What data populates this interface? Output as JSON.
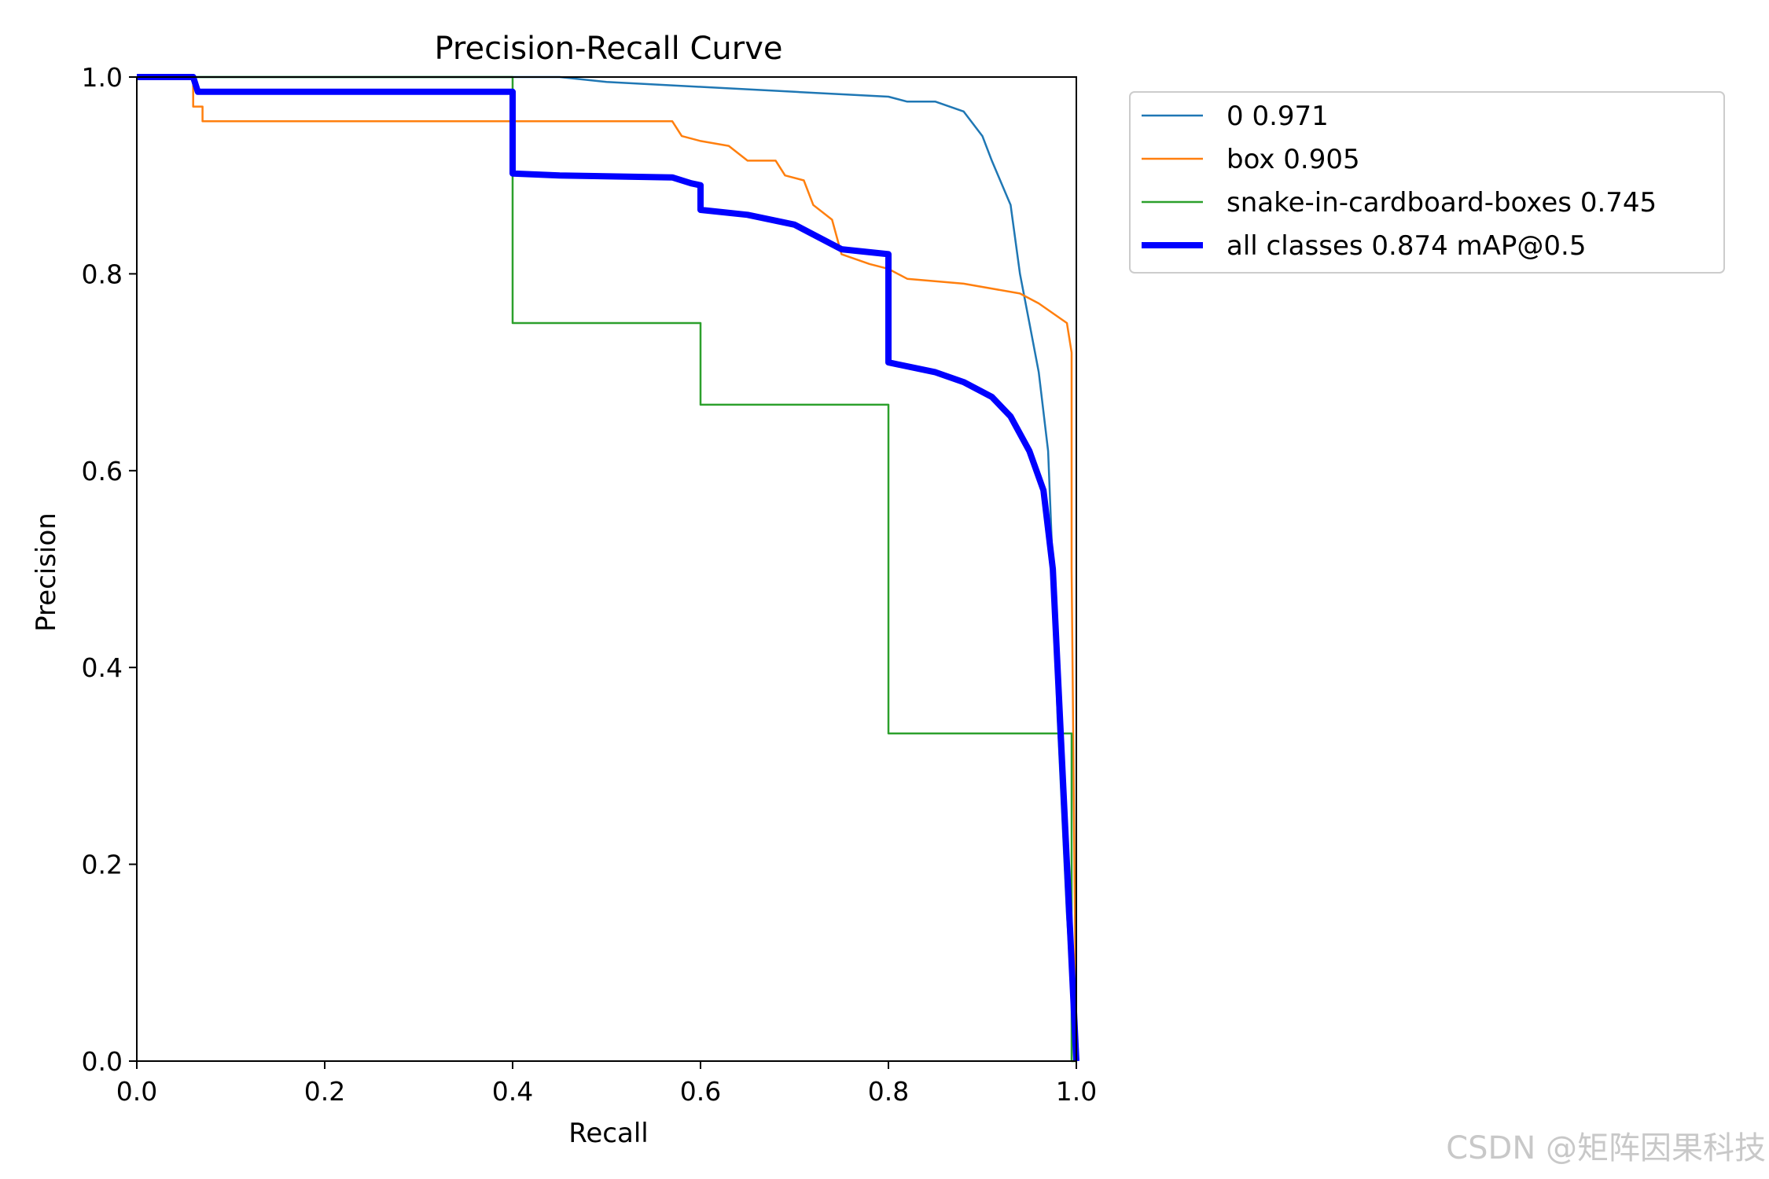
{
  "chart_data": {
    "type": "line",
    "title": "Precision-Recall Curve",
    "xlabel": "Recall",
    "ylabel": "Precision",
    "xlim": [
      0,
      1
    ],
    "ylim": [
      0,
      1
    ],
    "xticks": [
      "0.0",
      "0.2",
      "0.4",
      "0.6",
      "0.8",
      "1.0"
    ],
    "yticks": [
      "0.0",
      "0.2",
      "0.4",
      "0.6",
      "0.8",
      "1.0"
    ],
    "grid": false,
    "legend_position": "outside-top-right",
    "series": [
      {
        "name": "0 0.971",
        "color": "#1f77b4",
        "line": "thin",
        "points": [
          [
            0,
            1
          ],
          [
            0.45,
            1.0
          ],
          [
            0.5,
            0.995
          ],
          [
            0.6,
            0.99
          ],
          [
            0.7,
            0.985
          ],
          [
            0.8,
            0.98
          ],
          [
            0.82,
            0.975
          ],
          [
            0.85,
            0.975
          ],
          [
            0.88,
            0.965
          ],
          [
            0.9,
            0.94
          ],
          [
            0.91,
            0.915
          ],
          [
            0.93,
            0.87
          ],
          [
            0.94,
            0.8
          ],
          [
            0.95,
            0.75
          ],
          [
            0.96,
            0.7
          ],
          [
            0.97,
            0.62
          ],
          [
            0.975,
            0.5
          ],
          [
            0.98,
            0.35
          ],
          [
            0.99,
            0.15
          ],
          [
            1.0,
            0.0
          ]
        ]
      },
      {
        "name": "box 0.905",
        "color": "#ff7f0e",
        "line": "thin",
        "points": [
          [
            0,
            1
          ],
          [
            0.06,
            1.0
          ],
          [
            0.06,
            0.97
          ],
          [
            0.07,
            0.97
          ],
          [
            0.07,
            0.955
          ],
          [
            0.4,
            0.955
          ],
          [
            0.57,
            0.955
          ],
          [
            0.58,
            0.94
          ],
          [
            0.6,
            0.935
          ],
          [
            0.63,
            0.93
          ],
          [
            0.65,
            0.915
          ],
          [
            0.68,
            0.915
          ],
          [
            0.69,
            0.9
          ],
          [
            0.71,
            0.895
          ],
          [
            0.72,
            0.87
          ],
          [
            0.74,
            0.855
          ],
          [
            0.75,
            0.82
          ],
          [
            0.78,
            0.81
          ],
          [
            0.8,
            0.805
          ],
          [
            0.82,
            0.795
          ],
          [
            0.88,
            0.79
          ],
          [
            0.94,
            0.78
          ],
          [
            0.96,
            0.77
          ],
          [
            0.99,
            0.75
          ],
          [
            0.995,
            0.72
          ],
          [
            0.995,
            0.5
          ],
          [
            1.0,
            0.0
          ]
        ]
      },
      {
        "name": "snake-in-cardboard-boxes 0.745",
        "color": "#2ca02c",
        "line": "thin",
        "points": [
          [
            0,
            1
          ],
          [
            0.4,
            1
          ],
          [
            0.4,
            0.75
          ],
          [
            0.6,
            0.75
          ],
          [
            0.6,
            0.667
          ],
          [
            0.8,
            0.667
          ],
          [
            0.8,
            0.333
          ],
          [
            0.995,
            0.333
          ],
          [
            0.995,
            0.0
          ],
          [
            1.0,
            0.0
          ]
        ]
      },
      {
        "name": "all classes 0.874 mAP@0.5",
        "color": "#0000ff",
        "line": "thick",
        "points": [
          [
            0,
            1
          ],
          [
            0.06,
            1.0
          ],
          [
            0.065,
            0.985
          ],
          [
            0.4,
            0.985
          ],
          [
            0.4,
            0.902
          ],
          [
            0.45,
            0.9
          ],
          [
            0.57,
            0.898
          ],
          [
            0.59,
            0.892
          ],
          [
            0.6,
            0.89
          ],
          [
            0.6,
            0.865
          ],
          [
            0.65,
            0.86
          ],
          [
            0.7,
            0.85
          ],
          [
            0.72,
            0.84
          ],
          [
            0.74,
            0.83
          ],
          [
            0.75,
            0.825
          ],
          [
            0.8,
            0.82
          ],
          [
            0.8,
            0.71
          ],
          [
            0.85,
            0.7
          ],
          [
            0.88,
            0.69
          ],
          [
            0.91,
            0.675
          ],
          [
            0.93,
            0.655
          ],
          [
            0.95,
            0.62
          ],
          [
            0.965,
            0.58
          ],
          [
            0.975,
            0.5
          ],
          [
            0.985,
            0.3
          ],
          [
            0.995,
            0.1
          ],
          [
            1.0,
            0.0
          ]
        ]
      }
    ]
  },
  "watermark": "CSDN @矩阵因果科技"
}
